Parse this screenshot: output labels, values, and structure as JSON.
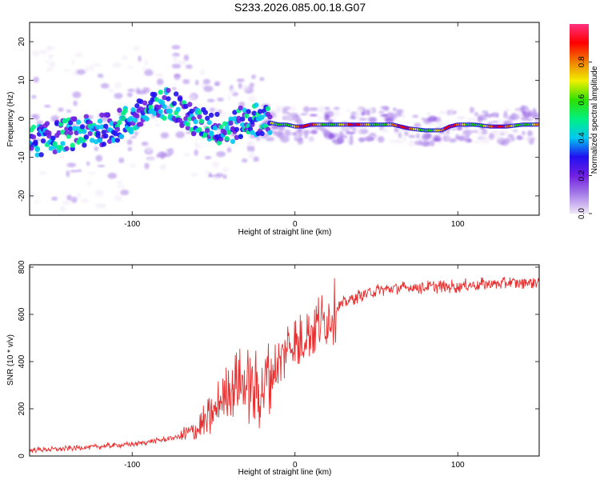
{
  "title": "S233.2026.085.00.18.G07",
  "chart_data": [
    {
      "type": "heatmap",
      "title": "S233.2026.085.00.18.G07",
      "xlabel": "Height of straight line (km)",
      "ylabel": "Frequency (Hz)",
      "xlim": [
        -163,
        150
      ],
      "ylim": [
        -25,
        25
      ],
      "x_ticks": [
        -100,
        0,
        100
      ],
      "x_tick_labels": [
        "-100",
        "0",
        "100"
      ],
      "y_ticks": [
        -20,
        -10,
        0,
        10,
        20
      ],
      "y_tick_labels": [
        "-20",
        "-10",
        "0",
        "10",
        "20"
      ],
      "colorbar": {
        "label": "Normalized spectral amplitude",
        "range": [
          0,
          1
        ],
        "ticks": [
          0.0,
          0.2,
          0.4,
          0.6,
          0.8
        ],
        "tick_labels": [
          "0.0",
          "0.2",
          "0.4",
          "0.6",
          "0.8"
        ],
        "colors": [
          "#f0e8f8",
          "#a880e8",
          "#7020e0",
          "#2010f0",
          "#00c8f0",
          "#00f080",
          "#30e000",
          "#f0f000",
          "#f08000",
          "#ff0000",
          "#ff3080"
        ]
      },
      "ridge": {
        "x": [
          -163,
          -150,
          -140,
          -130,
          -120,
          -110,
          -100,
          -95,
          -90,
          -85,
          -80,
          -75,
          -70,
          -65,
          -60,
          -55,
          -50,
          -45,
          -40,
          -35,
          -30,
          -25,
          -20,
          -15,
          -10,
          -5,
          0,
          5,
          10,
          20,
          30,
          40,
          50,
          60,
          70,
          80,
          90,
          95,
          100,
          110,
          120,
          130,
          140,
          150
        ],
        "y": [
          -6,
          -5,
          -4,
          -3.5,
          -3,
          -2,
          0,
          1,
          2,
          3,
          4,
          4,
          2,
          0,
          -1,
          -1.5,
          -2,
          -3,
          -2.5,
          -1.5,
          -0.5,
          0,
          -0.5,
          -1,
          -1.5,
          -1.5,
          -2,
          -2,
          -1.5,
          -1.5,
          -1.5,
          -1.5,
          -1.5,
          -1.5,
          -2.5,
          -3,
          -3,
          -2,
          -1.5,
          -1.5,
          -2,
          -2,
          -1.5,
          -1.5
        ]
      }
    },
    {
      "type": "line",
      "xlabel": "Height of straight line (km)",
      "ylabel": "SNR (10 * v/v)",
      "xlim": [
        -163,
        150
      ],
      "ylim": [
        0,
        810
      ],
      "x_ticks": [
        -100,
        0,
        100
      ],
      "x_tick_labels": [
        "-100",
        "0",
        "100"
      ],
      "y_ticks": [
        0,
        200,
        400,
        600,
        800
      ],
      "y_tick_labels": [
        "0",
        "200",
        "400",
        "600",
        "800"
      ],
      "series": [
        {
          "name": "SNR",
          "color": "#e83030",
          "x": [
            -163,
            -150,
            -140,
            -120,
            -100,
            -90,
            -80,
            -70,
            -60,
            -55,
            -50,
            -45,
            -40,
            -35,
            -30,
            -25,
            -20,
            -15,
            -10,
            -8,
            -5,
            -2,
            0,
            3,
            5,
            8,
            10,
            15,
            20,
            25,
            30,
            40,
            50,
            60,
            80,
            100,
            120,
            140,
            150
          ],
          "y": [
            25,
            28,
            32,
            40,
            50,
            60,
            70,
            85,
            110,
            140,
            180,
            240,
            290,
            310,
            300,
            280,
            300,
            340,
            380,
            420,
            460,
            480,
            470,
            470,
            500,
            530,
            540,
            560,
            580,
            620,
            650,
            680,
            700,
            710,
            715,
            720,
            730,
            735,
            740
          ]
        }
      ]
    }
  ]
}
